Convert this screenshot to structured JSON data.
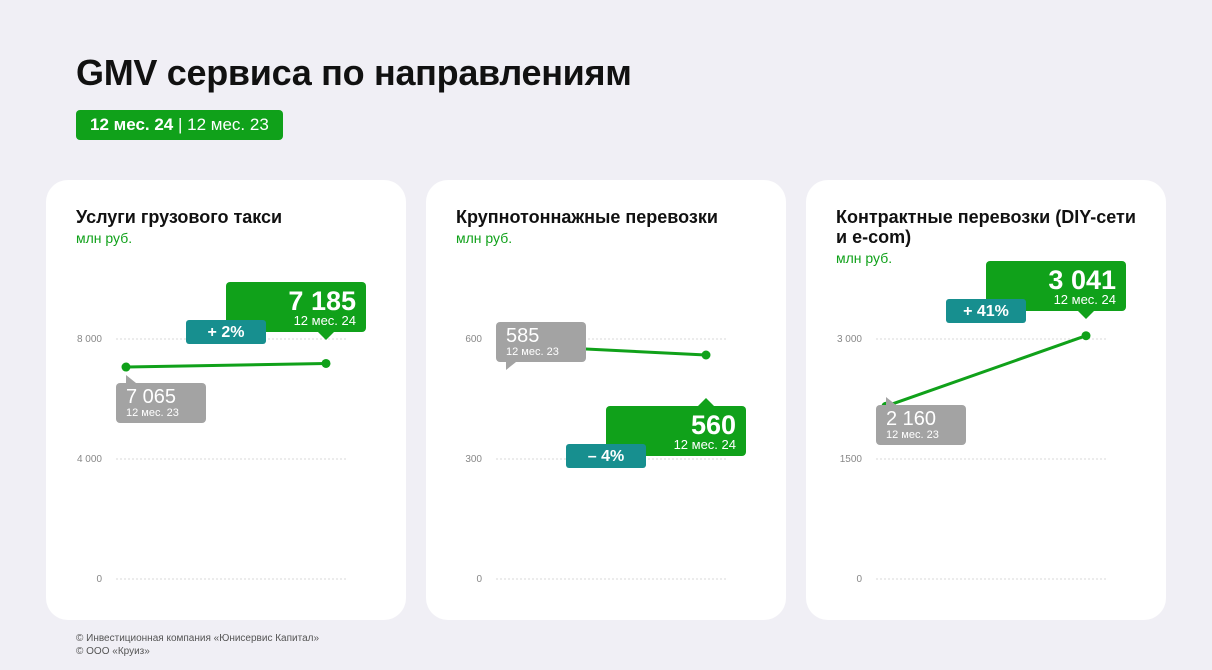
{
  "title": "GMV сервиса по направлениям",
  "period": {
    "current": "12 мес. 24",
    "separator": "|",
    "previous": "12 мес. 23"
  },
  "colors": {
    "current": "#10a11a",
    "previous": "#a3a3a3",
    "change": "#178f8f"
  },
  "chart_data": [
    {
      "type": "line",
      "title": "Услуги грузового такси",
      "unit": "млн руб.",
      "x": [
        "12 мес. 23",
        "12 мес. 24"
      ],
      "values": [
        7065,
        7185
      ],
      "labels": [
        "7 065",
        "7 185"
      ],
      "change": "+ 2%",
      "ylim": [
        0,
        12000
      ],
      "yticks": [
        0,
        4000,
        8000
      ],
      "ytick_labels": [
        "0",
        "4 000",
        "8 000"
      ],
      "grid": true
    },
    {
      "type": "line",
      "title": "Крупнотоннажные перевозки",
      "unit": "млн руб.",
      "x": [
        "12 мес. 23",
        "12 мес. 24"
      ],
      "values": [
        585,
        560
      ],
      "labels": [
        "585",
        "560"
      ],
      "change": "– 4%",
      "ylim": [
        0,
        900
      ],
      "yticks": [
        0,
        300,
        600
      ],
      "ytick_labels": [
        "0",
        "300",
        "600"
      ],
      "grid": true
    },
    {
      "type": "line",
      "title": "Контрактные перевозки (DIY-сети и e-com)",
      "unit": "млн руб.",
      "x": [
        "12 мес. 23",
        "12 мес. 24"
      ],
      "values": [
        2160,
        3041
      ],
      "labels": [
        "2 160",
        "3 041"
      ],
      "change": "+ 41%",
      "ylim": [
        0,
        4500
      ],
      "yticks": [
        0,
        1500,
        3000
      ],
      "ytick_labels": [
        "0",
        "1500",
        "3 000"
      ],
      "grid": true
    }
  ],
  "footer": [
    "© Инвестиционная компания «Юнисервис Капитал»",
    "© ООО «Круиз»"
  ]
}
